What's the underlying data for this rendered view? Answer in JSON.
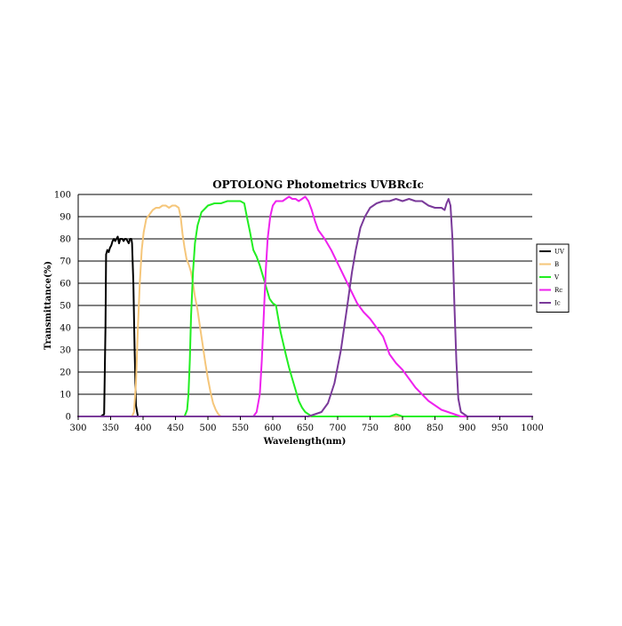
{
  "chart_data": {
    "type": "line",
    "title": "OPTOLONG Photometrics UVBRcIc",
    "xlabel": "Wavelength(nm)",
    "ylabel": "Transmittance(%)",
    "xlim": [
      300,
      1000
    ],
    "ylim": [
      0,
      100
    ],
    "x_ticks": [
      300,
      350,
      400,
      450,
      500,
      550,
      600,
      650,
      700,
      750,
      800,
      850,
      900,
      950,
      1000
    ],
    "y_ticks": [
      0,
      10,
      20,
      30,
      40,
      50,
      60,
      70,
      80,
      90,
      100
    ],
    "grid": "horizontal",
    "legend_position": "right",
    "series": [
      {
        "name": "UV",
        "color": "#000000",
        "points": [
          [
            300,
            0
          ],
          [
            335,
            0
          ],
          [
            340,
            1
          ],
          [
            342,
            40
          ],
          [
            343,
            73
          ],
          [
            345,
            75
          ],
          [
            347,
            74
          ],
          [
            349,
            76
          ],
          [
            351,
            77
          ],
          [
            353,
            79
          ],
          [
            355,
            80
          ],
          [
            357,
            79
          ],
          [
            359,
            80
          ],
          [
            361,
            81
          ],
          [
            363,
            78
          ],
          [
            365,
            80
          ],
          [
            368,
            80
          ],
          [
            370,
            79
          ],
          [
            372,
            80
          ],
          [
            374,
            80
          ],
          [
            376,
            79
          ],
          [
            378,
            78
          ],
          [
            380,
            80
          ],
          [
            382,
            80
          ],
          [
            383,
            78
          ],
          [
            385,
            60
          ],
          [
            387,
            30
          ],
          [
            389,
            5
          ],
          [
            392,
            0
          ],
          [
            1000,
            0
          ]
        ]
      },
      {
        "name": "B",
        "color": "#f5c67a",
        "points": [
          [
            300,
            0
          ],
          [
            383,
            0
          ],
          [
            386,
            2
          ],
          [
            389,
            15
          ],
          [
            392,
            40
          ],
          [
            395,
            60
          ],
          [
            398,
            75
          ],
          [
            401,
            83
          ],
          [
            405,
            89
          ],
          [
            410,
            91
          ],
          [
            415,
            93
          ],
          [
            420,
            94
          ],
          [
            425,
            94
          ],
          [
            430,
            95
          ],
          [
            435,
            95
          ],
          [
            440,
            94
          ],
          [
            445,
            95
          ],
          [
            450,
            95
          ],
          [
            455,
            94
          ],
          [
            458,
            90
          ],
          [
            461,
            82
          ],
          [
            464,
            76
          ],
          [
            467,
            71
          ],
          [
            471,
            68
          ],
          [
            474,
            65
          ],
          [
            477,
            60
          ],
          [
            480,
            54
          ],
          [
            484,
            48
          ],
          [
            488,
            40
          ],
          [
            492,
            32
          ],
          [
            496,
            24
          ],
          [
            500,
            17
          ],
          [
            504,
            11
          ],
          [
            508,
            6
          ],
          [
            512,
            3
          ],
          [
            516,
            1
          ],
          [
            520,
            0
          ],
          [
            1000,
            0
          ]
        ]
      },
      {
        "name": "V",
        "color": "#22ee22",
        "points": [
          [
            300,
            0
          ],
          [
            464,
            0
          ],
          [
            468,
            3
          ],
          [
            470,
            10
          ],
          [
            472,
            25
          ],
          [
            474,
            45
          ],
          [
            477,
            65
          ],
          [
            480,
            78
          ],
          [
            484,
            86
          ],
          [
            490,
            92
          ],
          [
            500,
            95
          ],
          [
            510,
            96
          ],
          [
            520,
            96
          ],
          [
            530,
            97
          ],
          [
            540,
            97
          ],
          [
            550,
            97
          ],
          [
            556,
            96
          ],
          [
            560,
            90
          ],
          [
            565,
            83
          ],
          [
            570,
            75
          ],
          [
            575,
            72
          ],
          [
            580,
            68
          ],
          [
            585,
            63
          ],
          [
            590,
            58
          ],
          [
            595,
            53
          ],
          [
            600,
            51
          ],
          [
            605,
            50
          ],
          [
            608,
            45
          ],
          [
            612,
            38
          ],
          [
            616,
            33
          ],
          [
            620,
            28
          ],
          [
            625,
            22
          ],
          [
            630,
            17
          ],
          [
            635,
            12
          ],
          [
            640,
            7
          ],
          [
            645,
            4
          ],
          [
            650,
            2
          ],
          [
            655,
            1
          ],
          [
            660,
            0
          ],
          [
            780,
            0
          ],
          [
            790,
            1
          ],
          [
            800,
            0
          ],
          [
            1000,
            0
          ]
        ]
      },
      {
        "name": "Rc",
        "color": "#ee22ee",
        "points": [
          [
            300,
            0
          ],
          [
            570,
            0
          ],
          [
            575,
            2
          ],
          [
            580,
            10
          ],
          [
            583,
            25
          ],
          [
            586,
            45
          ],
          [
            589,
            65
          ],
          [
            592,
            80
          ],
          [
            596,
            90
          ],
          [
            600,
            95
          ],
          [
            605,
            97
          ],
          [
            610,
            97
          ],
          [
            615,
            97
          ],
          [
            620,
            98
          ],
          [
            625,
            99
          ],
          [
            630,
            98
          ],
          [
            635,
            98
          ],
          [
            640,
            97
          ],
          [
            645,
            98
          ],
          [
            650,
            99
          ],
          [
            655,
            97
          ],
          [
            660,
            93
          ],
          [
            665,
            88
          ],
          [
            670,
            84
          ],
          [
            680,
            80
          ],
          [
            690,
            75
          ],
          [
            700,
            69
          ],
          [
            710,
            63
          ],
          [
            720,
            57
          ],
          [
            730,
            51
          ],
          [
            740,
            47
          ],
          [
            750,
            44
          ],
          [
            760,
            40
          ],
          [
            770,
            36
          ],
          [
            775,
            32
          ],
          [
            780,
            28
          ],
          [
            790,
            24
          ],
          [
            800,
            21
          ],
          [
            810,
            17
          ],
          [
            820,
            13
          ],
          [
            830,
            10
          ],
          [
            840,
            7
          ],
          [
            850,
            5
          ],
          [
            860,
            3
          ],
          [
            870,
            2
          ],
          [
            880,
            1
          ],
          [
            890,
            0
          ],
          [
            1000,
            0
          ]
        ]
      },
      {
        "name": "Ic",
        "color": "#7a3a9a",
        "points": [
          [
            300,
            0
          ],
          [
            655,
            0
          ],
          [
            665,
            1
          ],
          [
            675,
            2
          ],
          [
            685,
            6
          ],
          [
            695,
            15
          ],
          [
            705,
            30
          ],
          [
            715,
            50
          ],
          [
            722,
            65
          ],
          [
            728,
            75
          ],
          [
            735,
            85
          ],
          [
            742,
            90
          ],
          [
            750,
            94
          ],
          [
            760,
            96
          ],
          [
            770,
            97
          ],
          [
            780,
            97
          ],
          [
            790,
            98
          ],
          [
            800,
            97
          ],
          [
            810,
            98
          ],
          [
            820,
            97
          ],
          [
            830,
            97
          ],
          [
            840,
            95
          ],
          [
            850,
            94
          ],
          [
            860,
            94
          ],
          [
            865,
            93
          ],
          [
            868,
            96
          ],
          [
            871,
            98
          ],
          [
            874,
            95
          ],
          [
            877,
            80
          ],
          [
            880,
            50
          ],
          [
            883,
            25
          ],
          [
            886,
            8
          ],
          [
            890,
            2
          ],
          [
            895,
            1
          ],
          [
            900,
            0
          ],
          [
            950,
            0
          ],
          [
            1000,
            0
          ]
        ]
      }
    ]
  }
}
